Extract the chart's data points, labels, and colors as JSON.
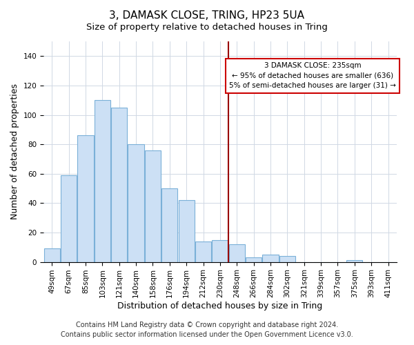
{
  "title": "3, DAMASK CLOSE, TRING, HP23 5UA",
  "subtitle": "Size of property relative to detached houses in Tring",
  "xlabel": "Distribution of detached houses by size in Tring",
  "ylabel": "Number of detached properties",
  "bar_labels": [
    "49sqm",
    "67sqm",
    "85sqm",
    "103sqm",
    "121sqm",
    "140sqm",
    "158sqm",
    "176sqm",
    "194sqm",
    "212sqm",
    "230sqm",
    "248sqm",
    "266sqm",
    "284sqm",
    "302sqm",
    "321sqm",
    "339sqm",
    "357sqm",
    "375sqm",
    "393sqm",
    "411sqm"
  ],
  "bar_values": [
    9,
    59,
    86,
    110,
    105,
    80,
    76,
    50,
    42,
    14,
    15,
    12,
    3,
    5,
    4,
    0,
    0,
    0,
    1,
    0,
    0
  ],
  "bar_color": "#cce0f5",
  "bar_edge_color": "#7ab0d8",
  "grid_color": "#d0d8e4",
  "annotation_box_line1": "3 DAMASK CLOSE: 235sqm",
  "annotation_box_line2": "← 95% of detached houses are smaller (636)",
  "annotation_box_line3": "5% of semi-detached houses are larger (31) →",
  "annotation_box_color": "#ffffff",
  "annotation_box_edge_color": "#cc0000",
  "vline_color": "#990000",
  "ylim": [
    0,
    150
  ],
  "yticks": [
    0,
    20,
    40,
    60,
    80,
    100,
    120,
    140
  ],
  "footer": "Contains HM Land Registry data © Crown copyright and database right 2024.\nContains public sector information licensed under the Open Government Licence v3.0.",
  "title_fontsize": 11,
  "subtitle_fontsize": 9.5,
  "axis_label_fontsize": 9,
  "tick_fontsize": 7.5,
  "footer_fontsize": 7,
  "vline_x_index": 10.5
}
